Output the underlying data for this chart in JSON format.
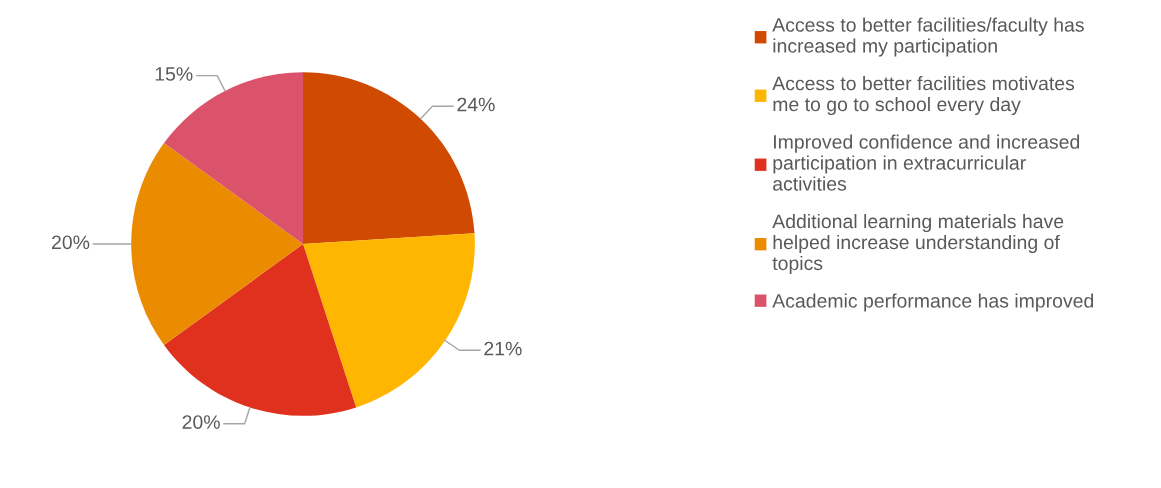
{
  "chart_data": {
    "type": "pie",
    "categories": [
      "Access to better facilities/faculty has\nincreased my participation",
      "Access to better facilities motivates\nme to go to school every day",
      "Improved confidence and increased\nparticipation in extracurricular\nactivities",
      "Additional learning materials have\nhelped increase understanding of\ntopics",
      "Academic performance has improved"
    ],
    "values": [
      24,
      21,
      20,
      20,
      15
    ],
    "colors": [
      "#d04a02",
      "#ffb600",
      "#e0301e",
      "#eb8c00",
      "#db536a"
    ],
    "value_labels": [
      "24%",
      "21%",
      "20%",
      "20%",
      "15%"
    ],
    "legend": "right"
  }
}
